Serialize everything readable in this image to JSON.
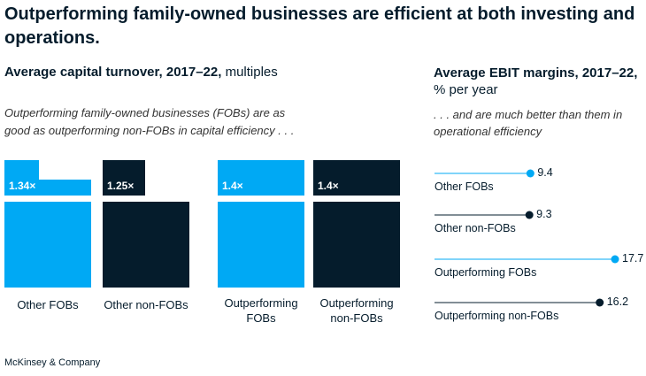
{
  "title": "Outperforming family-owned businesses are efficient at both investing and operations.",
  "left_subtitle_bold": "Average capital turnover, 2017–22,",
  "left_subtitle_unit": " multiples",
  "left_note": "Outperforming family-owned businesses (FOBs) are as good as outperforming non-FOBs in capital efficiency . . .",
  "right_subtitle_bold": "Average EBIT margins, 2017–22,",
  "right_subtitle_unit": "% per year",
  "right_note": ". . . and are much better than them in operational efficiency",
  "footer": "McKinsey & Company",
  "colors": {
    "light": "#00a9f4",
    "dark": "#051c2c"
  },
  "chart_data": [
    {
      "type": "bar",
      "title": "Average capital turnover, 2017–22, multiples",
      "categories": [
        "Other FOBs",
        "Other non-FOBs",
        "Outperforming FOBs",
        "Outperforming non-FOBs"
      ],
      "values": [
        1.34,
        1.25,
        1.4,
        1.4
      ],
      "value_labels": [
        "1.34×",
        "1.25×",
        "1.4×",
        "1.4×"
      ],
      "category_labels": [
        [
          "Other FOBs"
        ],
        [
          "Other non-FOBs"
        ],
        [
          "Outperforming",
          "FOBs"
        ],
        [
          "Outperforming",
          "non-FOBs"
        ]
      ],
      "colors": [
        "#00a9f4",
        "#051c2c",
        "#00a9f4",
        "#051c2c"
      ]
    },
    {
      "type": "scatter",
      "title": "Average EBIT margins, 2017–22, % per year",
      "categories": [
        "Other FOBs",
        "Other non-FOBs",
        "Outperforming FOBs",
        "Outperforming non-FOBs"
      ],
      "values": [
        9.4,
        9.3,
        17.7,
        16.2
      ],
      "value_labels": [
        "9.4",
        "9.3",
        "17.7",
        "16.2"
      ],
      "colors": [
        "#00a9f4",
        "#051c2c",
        "#00a9f4",
        "#051c2c"
      ],
      "xlim": [
        0,
        18.5
      ]
    }
  ]
}
